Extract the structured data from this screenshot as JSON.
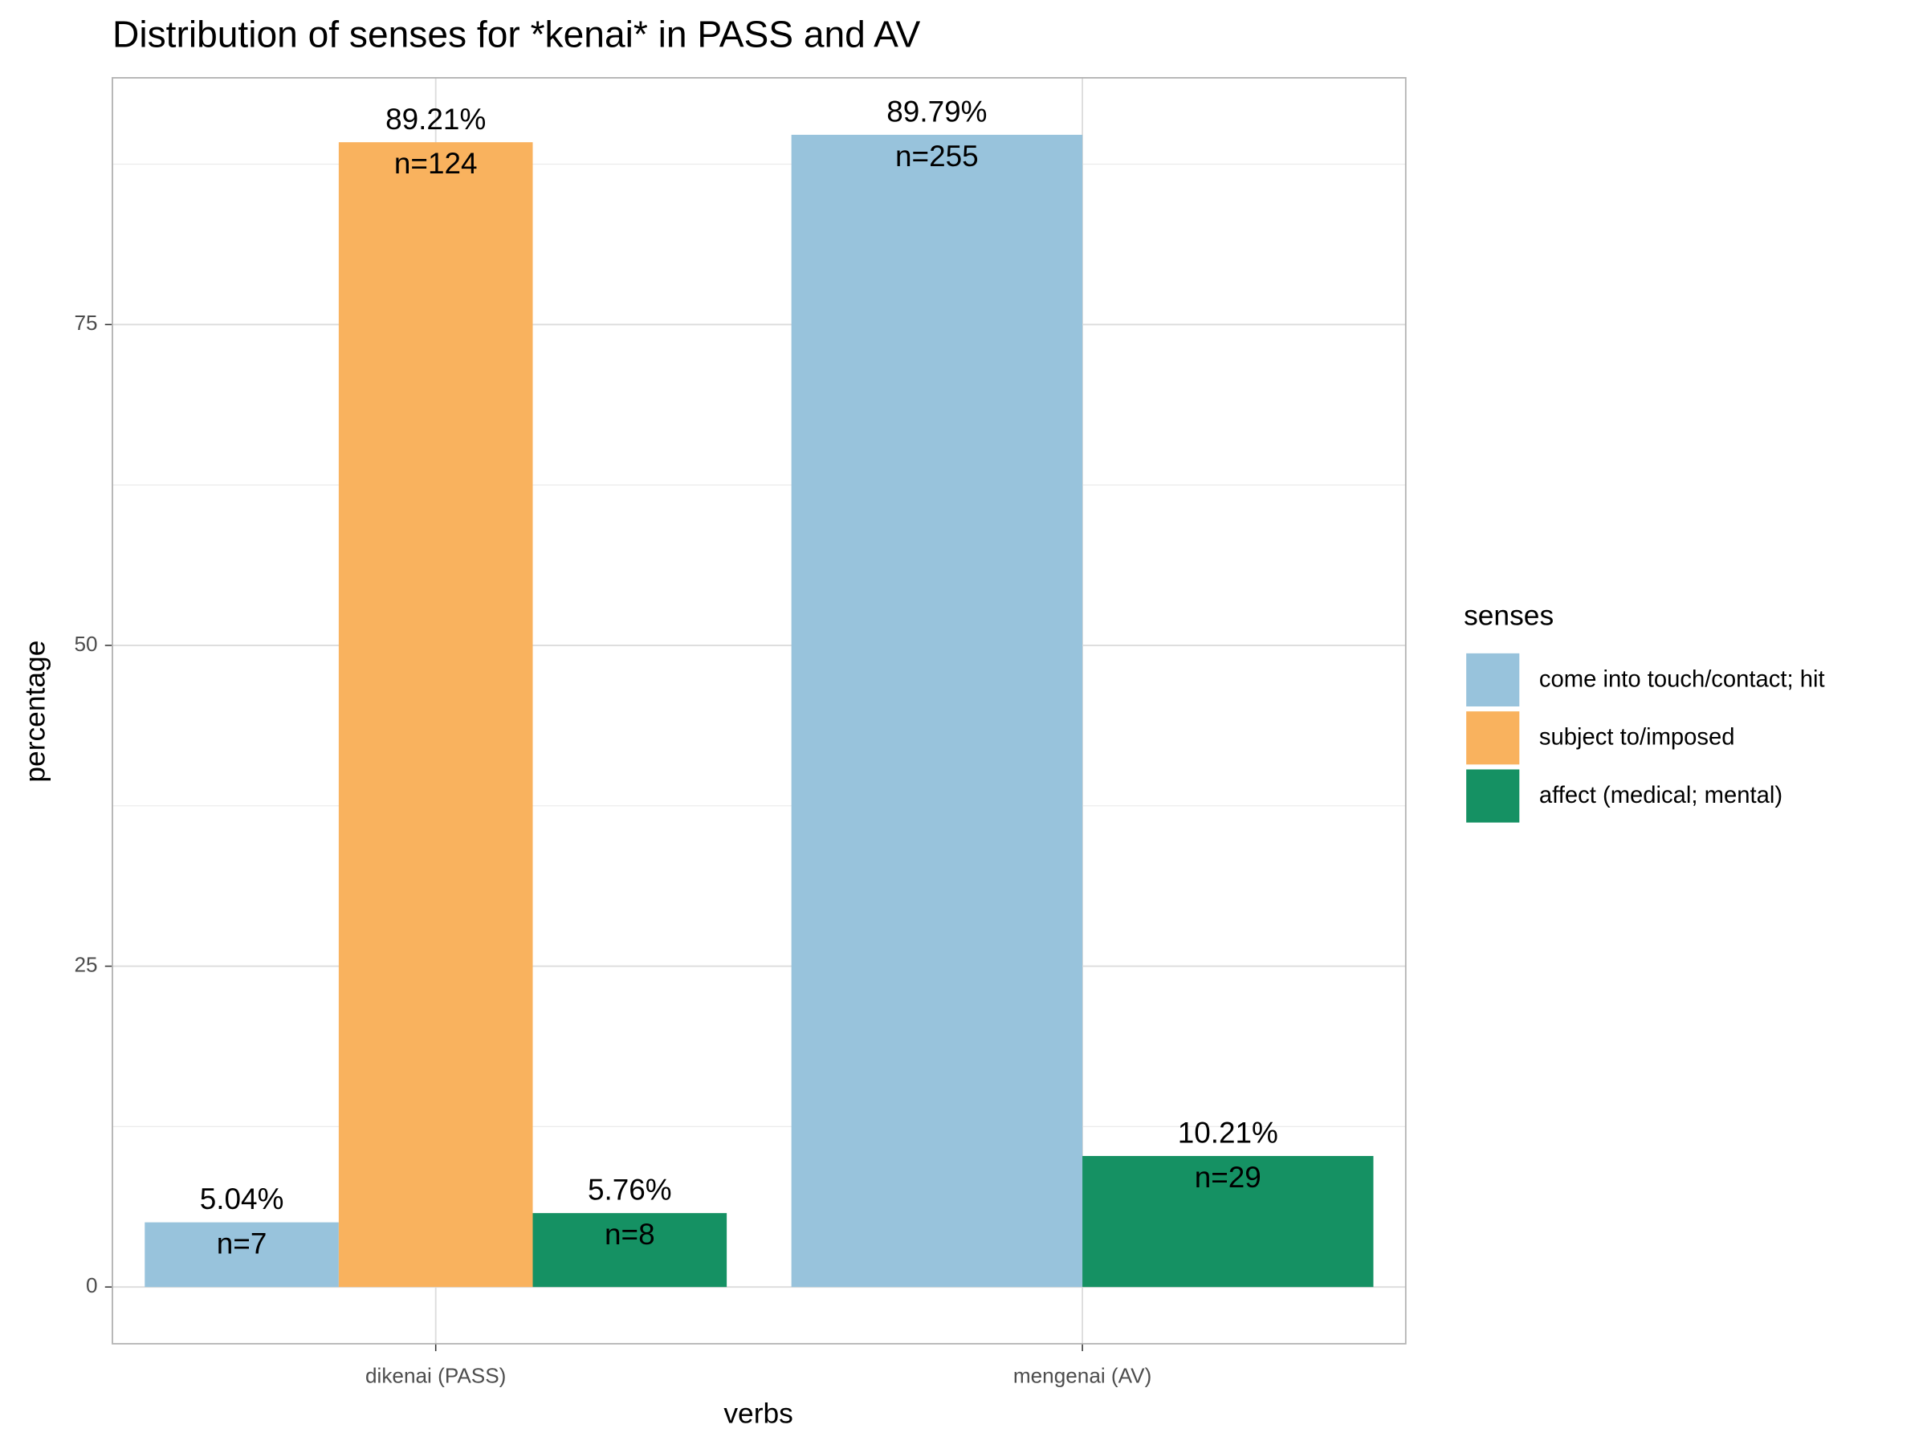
{
  "chart_data": {
    "type": "bar",
    "title": "Distribution of senses for *kenai* in PASS and AV",
    "x_label": "verbs",
    "y_label": "percentage",
    "legend_title": "senses",
    "legend_position": "right",
    "categories": [
      "dikenai (PASS)",
      "mengenai (AV)"
    ],
    "series": [
      {
        "name": "come into touch/contact; hit",
        "color": "#98c3dc",
        "values": [
          5.04,
          89.79
        ],
        "value_labels": [
          "5.04%",
          "89.79%"
        ],
        "count_labels": [
          "n=7",
          "n=255"
        ]
      },
      {
        "name": "subject to/imposed",
        "color": "#f9b25e",
        "values": [
          89.21,
          null
        ],
        "value_labels": [
          "89.21%",
          null
        ],
        "count_labels": [
          "n=124",
          null
        ]
      },
      {
        "name": "affect (medical; mental)",
        "color": "#159163",
        "values": [
          5.76,
          10.21
        ],
        "value_labels": [
          "5.76%",
          "10.21%"
        ],
        "count_labels": [
          "n=8",
          "n=29"
        ]
      }
    ],
    "ylim": [
      -4.42,
      94.23
    ],
    "yticks": [
      0,
      25,
      50,
      75
    ],
    "minor_yticks": [
      12.5,
      37.5,
      62.5,
      87.5
    ],
    "grid": true
  }
}
